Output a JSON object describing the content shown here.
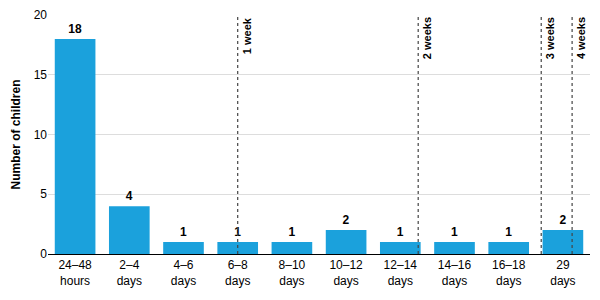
{
  "chart_data": {
    "type": "bar",
    "categories": [
      "24–48 hours",
      "2–4 days",
      "4–6 days",
      "6–8 days",
      "8–10 days",
      "10–12 days",
      "12–14 days",
      "14–16 days",
      "16–18 days",
      "29 days"
    ],
    "values": [
      18,
      4,
      1,
      1,
      1,
      2,
      1,
      1,
      1,
      2
    ],
    "color": "#1ba1dc",
    "y_label": "Number of children",
    "ylim": [
      0,
      20
    ],
    "yticks": [
      0,
      5,
      10,
      15,
      20
    ],
    "grid": true,
    "data_labels": true,
    "annotations": [
      {
        "text": "1 week",
        "x": 3
      },
      {
        "text": "2 weeks",
        "x": 6.33
      },
      {
        "text": "3 weeks",
        "x": 8.6
      },
      {
        "text": "4 weeks",
        "x": 9.17
      }
    ]
  }
}
